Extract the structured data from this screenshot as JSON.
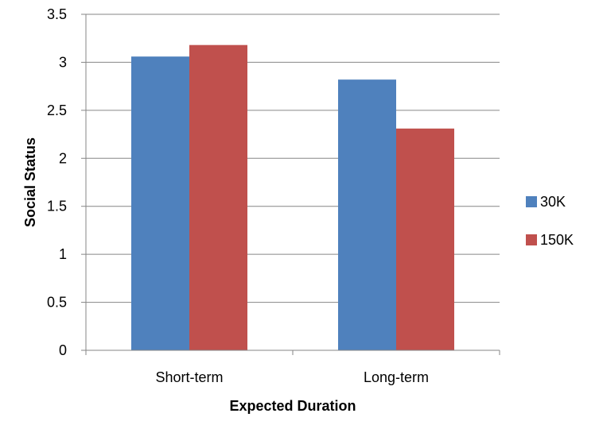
{
  "chart_data": {
    "type": "bar",
    "title": "",
    "xlabel": "Expected Duration",
    "ylabel": "Social Status",
    "categories": [
      "Short-term",
      "Long-term"
    ],
    "series": [
      {
        "name": "30K",
        "values": [
          3.06,
          2.82
        ],
        "color": "#4F81BD"
      },
      {
        "name": "150K",
        "values": [
          3.18,
          2.31
        ],
        "color": "#C0504D"
      }
    ],
    "ylim": [
      0,
      3.5
    ],
    "yticks": [
      "0",
      "0.5",
      "1",
      "1.5",
      "2",
      "2.5",
      "3",
      "3.5"
    ],
    "grid": true,
    "legend_position": "right"
  }
}
